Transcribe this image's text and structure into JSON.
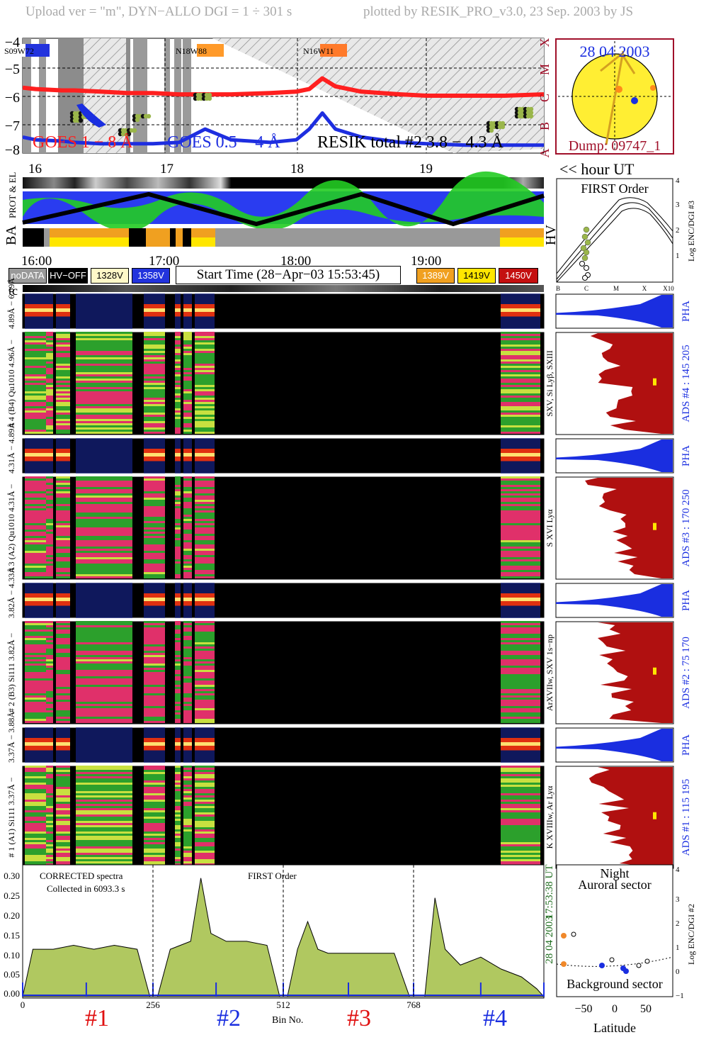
{
  "header": {
    "upload": "Upload ver = \"m\", DYN−ALLO DGI =   1 ÷ 301 s",
    "plotted": "plotted by RESIK_PRO_v3.0, 23 Sep. 2003 by JS"
  },
  "goes": {
    "y_ticks": [
      "−4",
      "−5",
      "−6",
      "−7",
      "−8"
    ],
    "class_letters": [
      "X",
      "M",
      "C",
      "B",
      "A"
    ],
    "regions": [
      "S09W72",
      "N18W88",
      "N16W11"
    ],
    "legend_goes_long": "GOES 1 − 8 Å",
    "legend_goes_short": "GOES 0.5 − 4 Å",
    "legend_resik": "RESIK total #2  3.8 − 4.3 Å",
    "colors": {
      "long": "#ff1f1f",
      "short": "#1e2ee0",
      "resik": "#0a0a0a",
      "region_blue": "#2233dd",
      "region_orange": "#ff9a2a"
    }
  },
  "sun": {
    "date": "28 04 2003",
    "dump": "Dump: 09747_1",
    "color_disk": "#ffee33",
    "color_border": "#a0102a"
  },
  "hours_top": [
    "16",
    "17",
    "18",
    "19"
  ],
  "hour_ut_label": "<< hour UT",
  "prot_label": "PROT & EL",
  "ba_label": "BA",
  "hv_label": "HV",
  "hours_mid": [
    "16:00",
    "17:00",
    "18:00",
    "19:00"
  ],
  "legend": {
    "nodata": "noDATA",
    "hvoff": "HV−OFF",
    "v1328": "1328V",
    "v1358": "1358V",
    "start_time": "Start Time (28−Apr−03 15:53:45)",
    "v1389": "1389V",
    "v1419": "1419V",
    "v1450": "1450V"
  },
  "tc_label": "tc",
  "first_order_chart": {
    "title": "FIRST Order",
    "ylabel": "Log ENC/DGI #3",
    "x_ticks": [
      "B",
      "C",
      "M",
      "X",
      "X10"
    ],
    "y_ticks": [
      "1",
      "2",
      "3",
      "4"
    ]
  },
  "spectrogram_rows": [
    {
      "left_label": "4.89Å − 6.09Å",
      "right_label": "PHA"
    },
    {
      "left_label": "# 4 (B4) Qu1010 4.96Å −",
      "right_label": "ADS #4 :   145 205",
      "line_label": "SXV, Si Lyβ, SXIII"
    },
    {
      "left_label": "4.31Å − 4.89Å",
      "right_label": "PHA"
    },
    {
      "left_label": "# 3 (A2) Qu1010 4.31Å −",
      "right_label": "ADS #3 :   170 250",
      "line_label": "S XVI Lyα"
    },
    {
      "left_label": "3.82Å − 4.33Å",
      "right_label": "PHA"
    },
    {
      "left_label": "# 2 (B3) Si111 3.82Å −",
      "right_label": "ADS #2 :   75 170",
      "line_label": "ArXVIIw, SXV 1s−np"
    },
    {
      "left_label": "3.37Å − 3.88Å",
      "right_label": "PHA"
    },
    {
      "left_label": "# 1 (A1) Si111 3.37Å −",
      "right_label": "ADS #1 :   115 195",
      "line_label": "K XVIIIw, Ar Lyα"
    }
  ],
  "spectrum": {
    "annotation_1": "CORRECTED spectra",
    "annotation_2": "Collected in  6093.3 s",
    "annotation_3": "FIRST Order",
    "y_ticks": [
      "0.00",
      "0.05",
      "0.10",
      "0.15",
      "0.20",
      "0.25",
      "0.30"
    ],
    "x_ticks": [
      "0",
      "256",
      "512",
      "768"
    ],
    "xlabel": "Bin No.",
    "side_date": "28 04 2003",
    "side_time": "17:53:38 UT"
  },
  "sections": [
    "#1",
    "#2",
    "#3",
    "#4"
  ],
  "latitude_chart": {
    "title1": "Night",
    "title2": "Auroral sector",
    "bottom": "Background sector",
    "xlabel": "Latitude",
    "x_ticks": [
      "−50",
      "0",
      "50"
    ],
    "y_ticks": [
      "−1",
      "0",
      "1",
      "2",
      "3",
      "4"
    ],
    "ylabel": "Log ENC/DGI #2"
  },
  "chart_data": [
    {
      "type": "line",
      "title": "",
      "ylabel": "",
      "ylim": [
        -8.2,
        -3.8
      ],
      "x_hours": [
        15.9,
        16.0,
        16.2,
        16.3,
        16.5,
        16.7,
        16.9,
        17.1,
        17.3,
        17.5,
        17.8,
        18.0,
        18.1,
        18.2,
        18.3,
        18.5,
        18.8,
        19.0,
        19.3,
        19.6,
        19.9
      ],
      "series": [
        {
          "name": "GOES 1 − 8 Å",
          "values": [
            -5.75,
            -5.8,
            -5.85,
            -5.85,
            -5.9,
            -5.95,
            -5.95,
            -6.0,
            -6.0,
            -6.0,
            -5.95,
            -5.9,
            -5.8,
            -5.4,
            -5.7,
            -5.9,
            -6.0,
            -6.05,
            -6.05,
            -6.05,
            -6.0
          ]
        },
        {
          "name": "GOES 0.5 − 4 Å",
          "values": [
            -7.6,
            -7.7,
            -7.75,
            -7.8,
            -7.85,
            -7.85,
            -7.85,
            -7.8,
            -7.3,
            -7.7,
            -7.8,
            -7.7,
            -7.3,
            -6.7,
            -7.3,
            -7.6,
            -7.8,
            -7.85,
            -7.9,
            -7.9,
            -7.9
          ]
        }
      ]
    },
    {
      "type": "area",
      "title": "",
      "xlabel": "Bin No.",
      "ylim": [
        0,
        0.33
      ],
      "xlim": [
        0,
        1024
      ],
      "x": [
        0,
        20,
        60,
        100,
        140,
        180,
        225,
        250,
        265,
        290,
        310,
        330,
        350,
        370,
        400,
        440,
        480,
        505,
        520,
        540,
        560,
        580,
        600,
        640,
        680,
        730,
        760,
        790,
        810,
        830,
        860,
        900,
        940,
        980,
        1010,
        1024
      ],
      "series": [
        {
          "name": "",
          "values": [
            0.0,
            0.12,
            0.12,
            0.13,
            0.12,
            0.13,
            0.12,
            0.0,
            0.0,
            0.12,
            0.13,
            0.14,
            0.3,
            0.16,
            0.14,
            0.14,
            0.13,
            0.0,
            0.0,
            0.12,
            0.19,
            0.12,
            0.11,
            0.11,
            0.11,
            0.11,
            0.0,
            0.0,
            0.25,
            0.12,
            0.08,
            0.1,
            0.07,
            0.05,
            0.02,
            0.0
          ]
        }
      ]
    }
  ]
}
